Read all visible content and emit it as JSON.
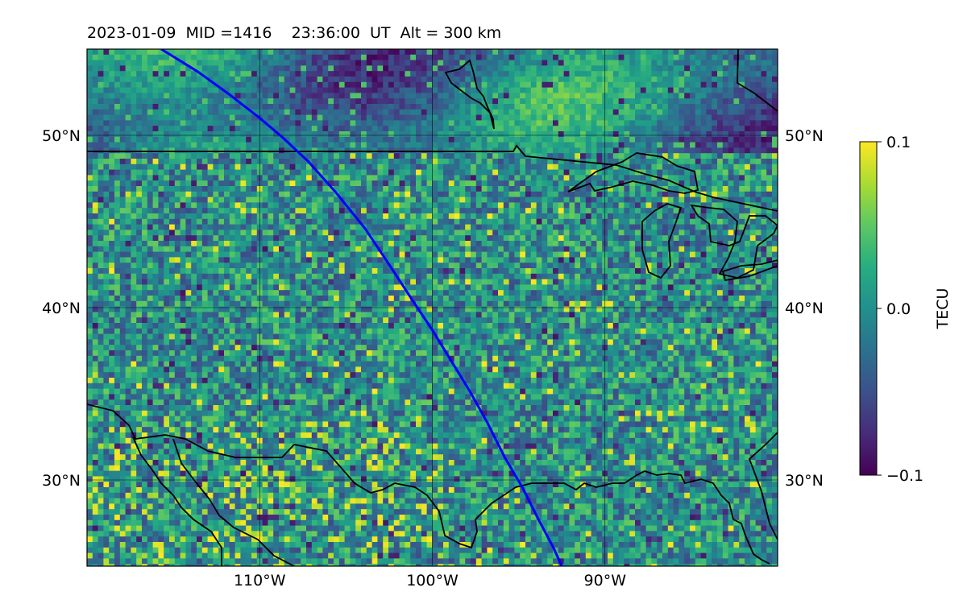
{
  "title": "2023-01-09  MID =1416    23:36:00  UT  Alt = 300 km",
  "map": {
    "lon_range": [
      -120,
      -80
    ],
    "lat_range": [
      25,
      55
    ],
    "lat_ticks": [
      {
        "value": 30,
        "label": "30°N"
      },
      {
        "value": 40,
        "label": "40°N"
      },
      {
        "value": 50,
        "label": "50°N"
      }
    ],
    "lon_ticks": [
      {
        "value": -110,
        "label": "110°W"
      },
      {
        "value": -100,
        "label": "100°W"
      },
      {
        "value": -90,
        "label": "90°W"
      }
    ],
    "grid": true,
    "satellite_track": {
      "color": "#0000ff",
      "points": [
        [
          -115.7,
          55.0
        ],
        [
          -113.6,
          53.7
        ],
        [
          -111.8,
          52.4
        ],
        [
          -110.0,
          51.0
        ],
        [
          -108.7,
          49.9
        ],
        [
          -107.2,
          48.5
        ],
        [
          -105.6,
          46.7
        ],
        [
          -103.9,
          44.6
        ],
        [
          -102.5,
          42.5
        ],
        [
          -101.2,
          40.5
        ],
        [
          -100.0,
          38.7
        ],
        [
          -98.9,
          36.9
        ],
        [
          -97.8,
          35.1
        ],
        [
          -96.8,
          33.3
        ],
        [
          -95.8,
          31.3
        ],
        [
          -94.8,
          29.6
        ],
        [
          -93.9,
          27.8
        ],
        [
          -93.0,
          26.1
        ],
        [
          -92.5,
          25.0
        ]
      ]
    },
    "coast_color": "#000000"
  },
  "colorbar": {
    "label": "TECU",
    "colormap": "viridis",
    "min": -0.1,
    "max": 0.1,
    "ticks": [
      {
        "value": 0.1,
        "label": "0.1"
      },
      {
        "value": 0.0,
        "label": "0.0"
      },
      {
        "value": -0.1,
        "label": "−0.1"
      }
    ]
  }
}
